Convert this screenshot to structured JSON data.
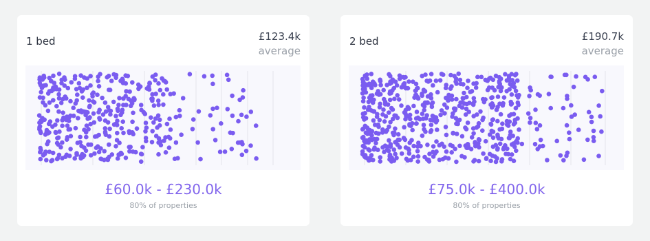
{
  "cards": [
    {
      "title": "1 bed",
      "average": "£123.4k",
      "average_label": "average",
      "range": "£60.0k - £230.0k",
      "range_note": "80% of properties"
    },
    {
      "title": "2 bed",
      "average": "£190.7k",
      "average_label": "average",
      "range": "£75.0k - £400.0k",
      "range_note": "80% of properties"
    }
  ]
}
